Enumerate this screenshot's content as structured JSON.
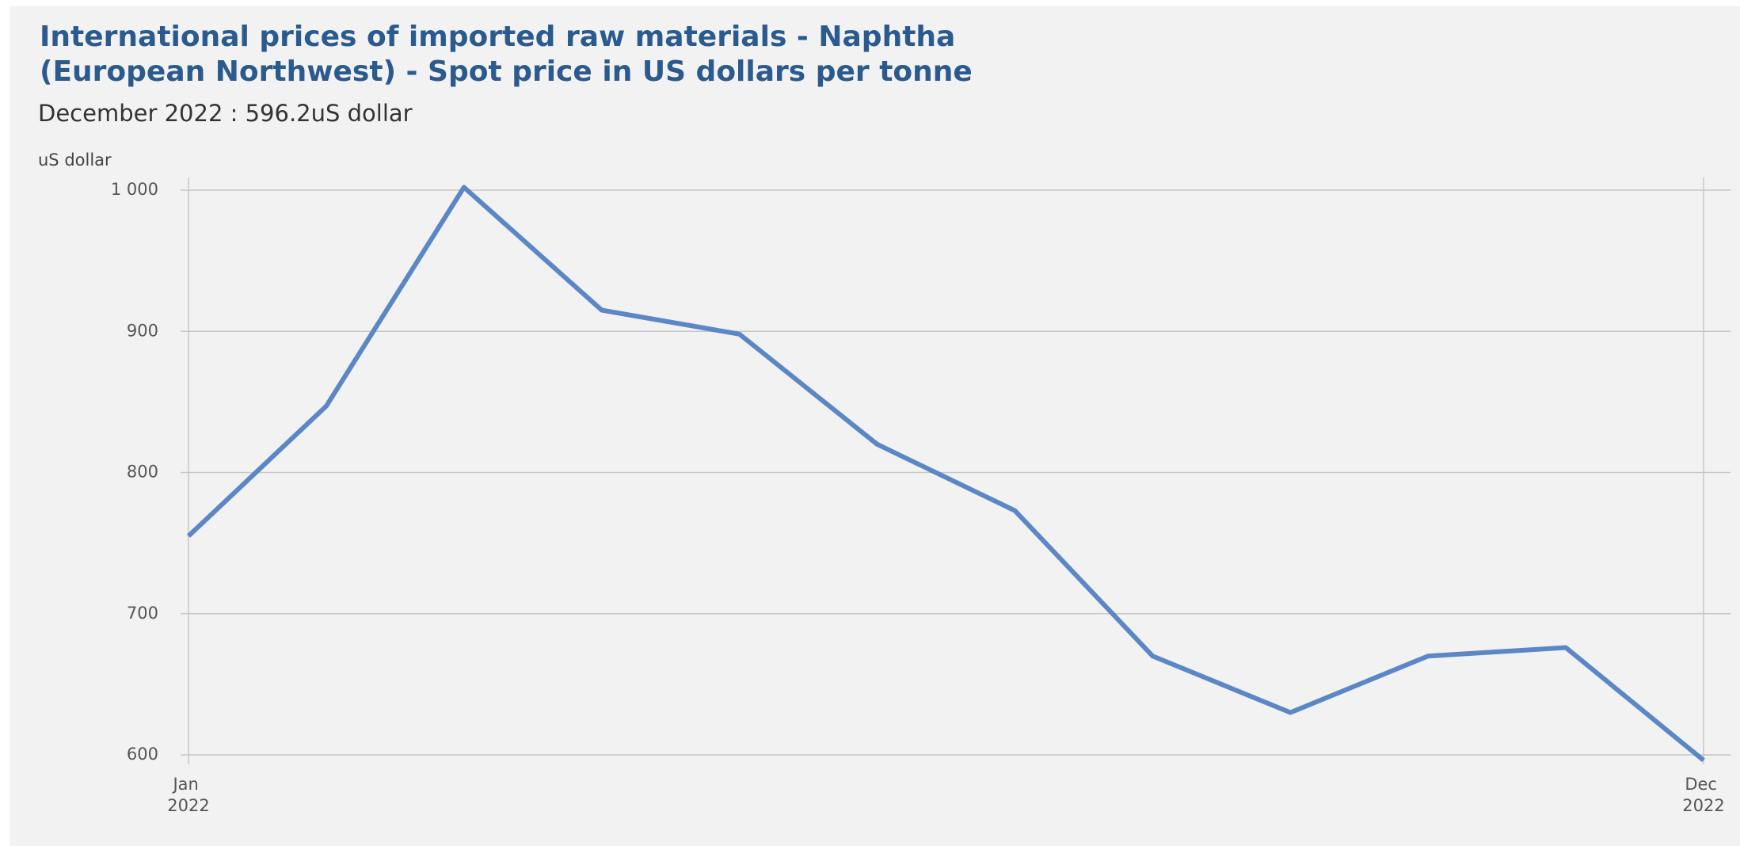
{
  "chart_data": {
    "type": "line",
    "title": [
      "International prices of imported raw materials - Naphtha",
      "(European Northwest) - Spot price in US dollars per tonne"
    ],
    "subtitle": "December 2022 : 596.2uS dollar",
    "y_label": "uS dollar",
    "categories": [
      "Jan 2022",
      null,
      null,
      null,
      null,
      null,
      null,
      null,
      null,
      null,
      null,
      "Dec 2022"
    ],
    "series": [
      {
        "name": "Naphtha",
        "color": "#5b87c7",
        "values": [
          755,
          847,
          1002,
          915,
          898,
          820,
          773,
          670,
          630,
          670,
          676,
          596.2
        ]
      }
    ],
    "ylim": [
      600,
      1000
    ],
    "yticks": [
      600,
      700,
      800,
      900,
      {
        "value": 1000,
        "label": "1 000"
      }
    ],
    "grid": true
  }
}
